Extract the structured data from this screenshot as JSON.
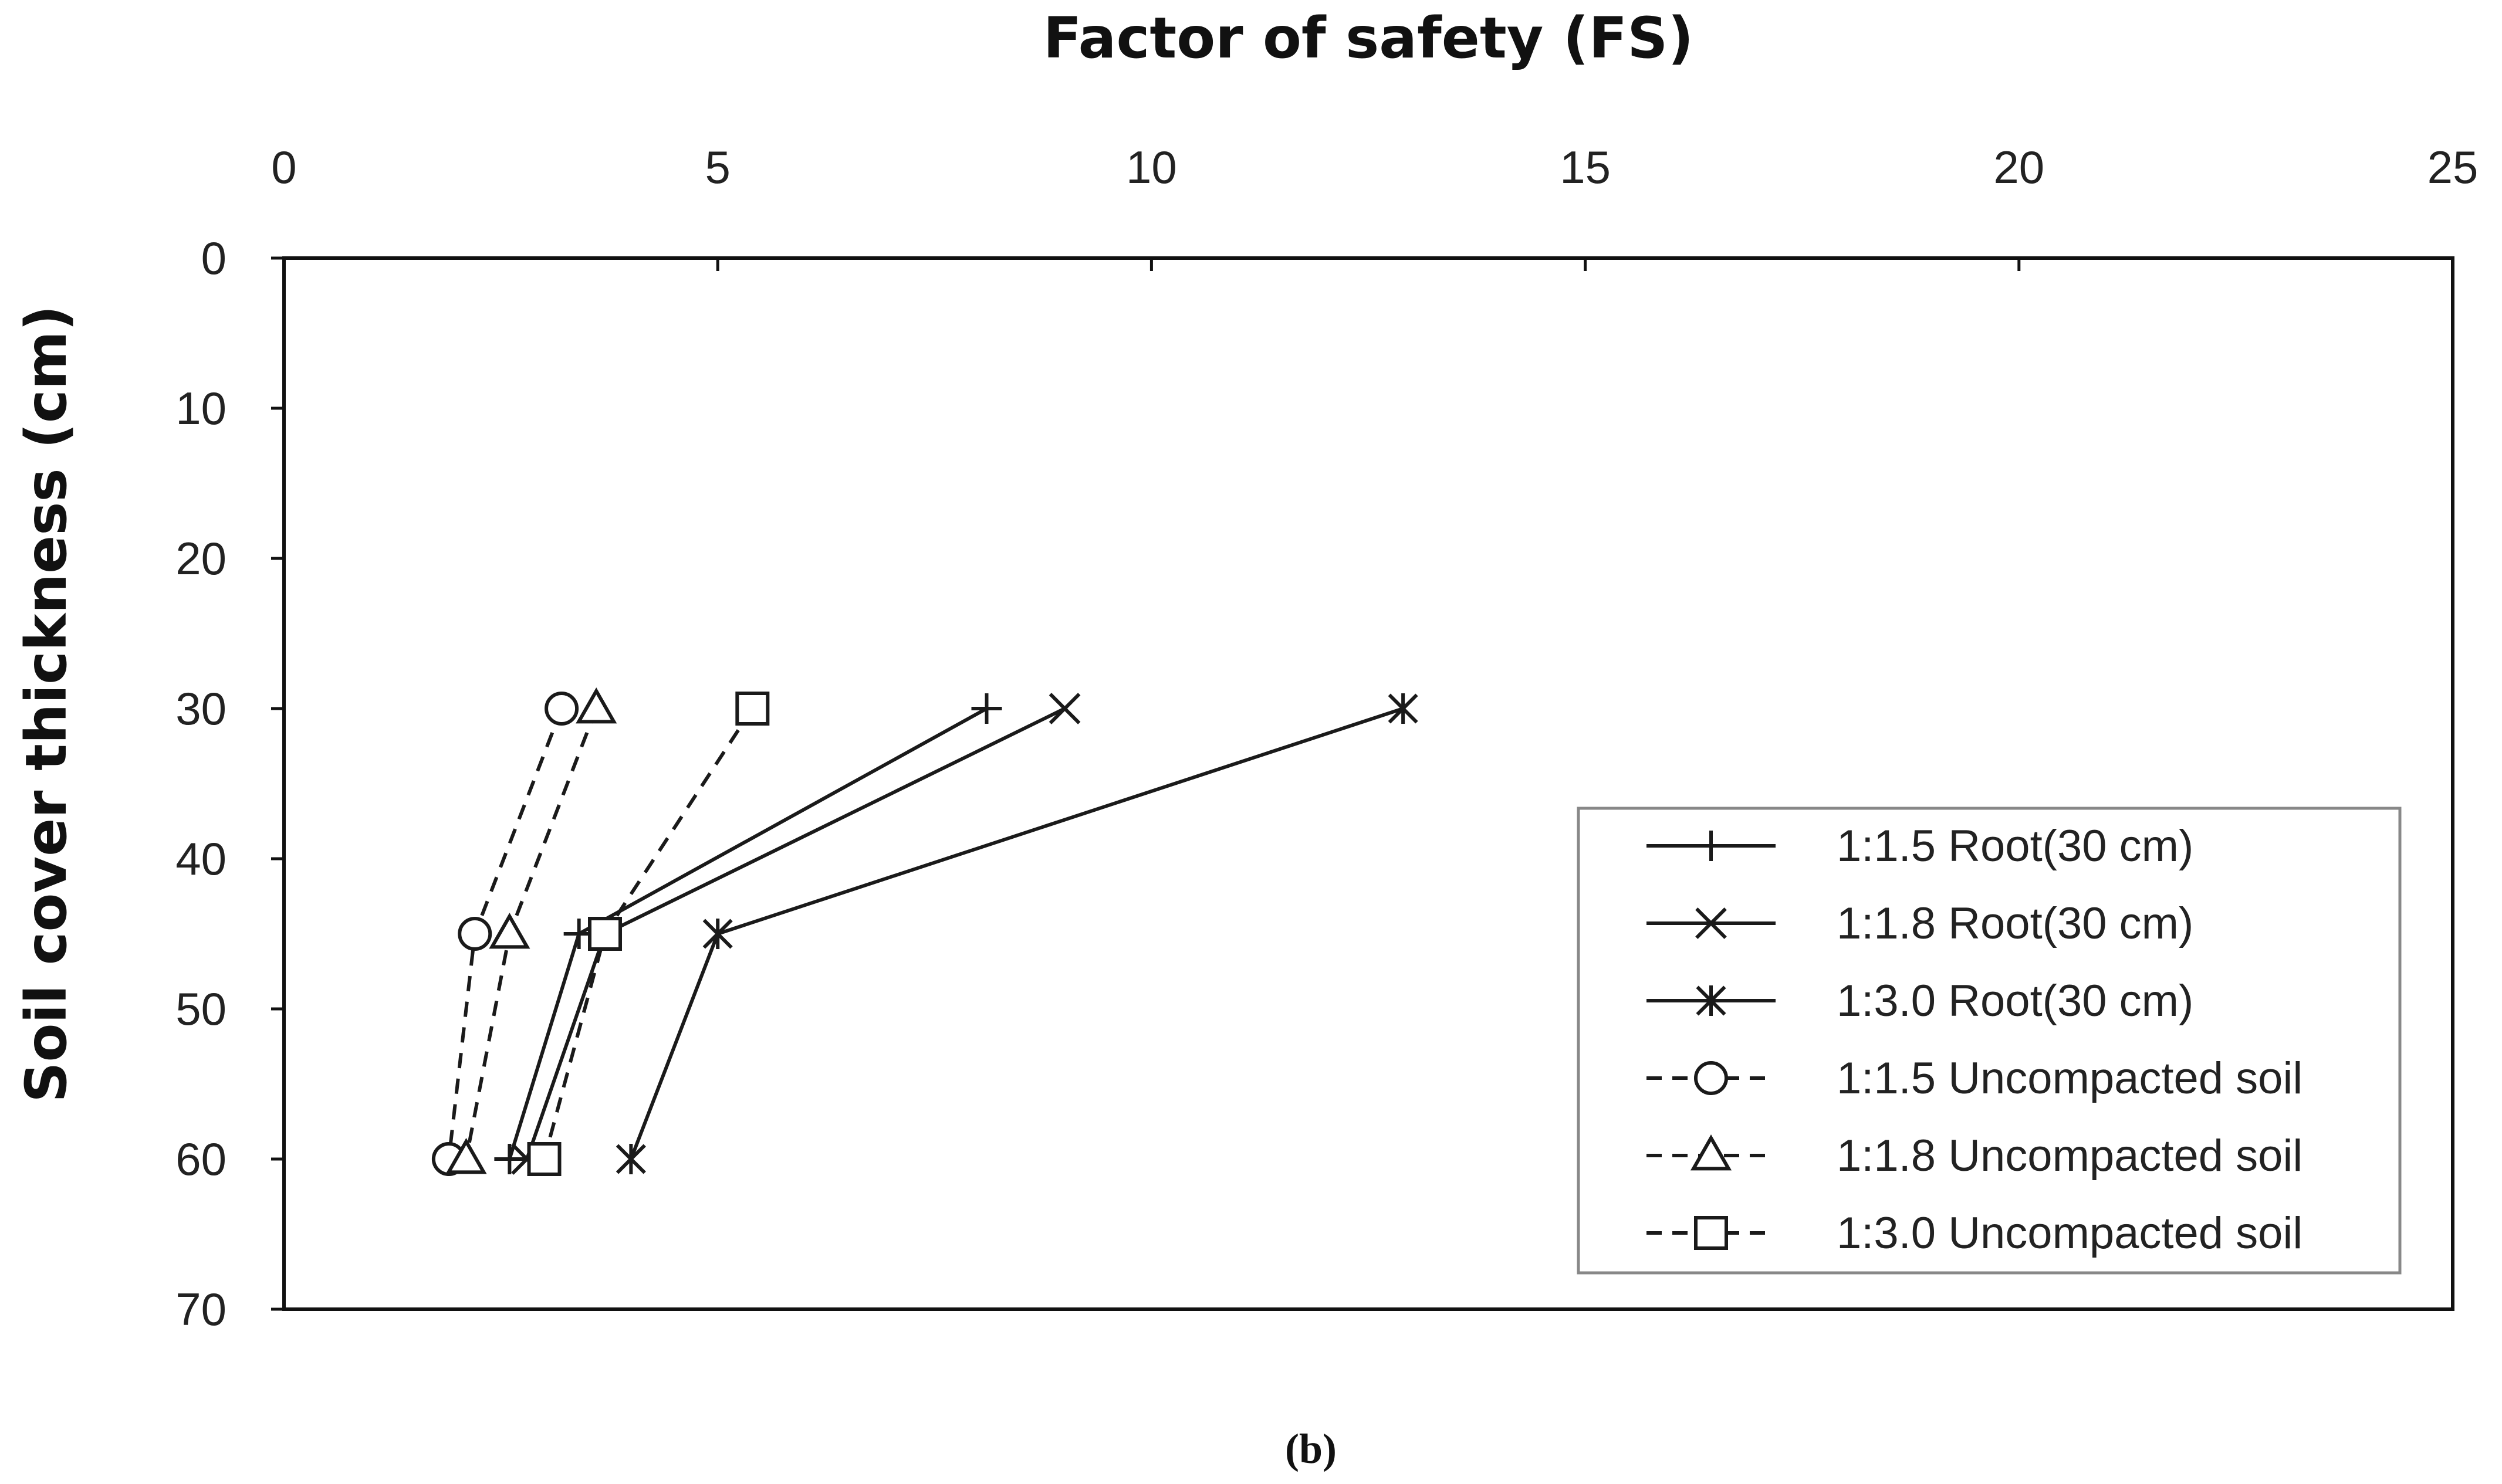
{
  "chart_data": {
    "type": "line",
    "title": "Factor of safety (FS)",
    "xlabel": "Factor of safety (FS)",
    "ylabel": "Soil cover thickness (cm)",
    "xlim": [
      0,
      25
    ],
    "ylim": [
      0,
      70
    ],
    "x_ticks": [
      "0",
      "5",
      "10",
      "15",
      "20",
      "25"
    ],
    "y_ticks": [
      "0",
      "10",
      "20",
      "30",
      "40",
      "50",
      "60",
      "70"
    ],
    "x_axis_position": "top",
    "y_axis_inverted": true,
    "grid": false,
    "legend_position": "right",
    "caption": "(b)",
    "series": [
      {
        "name": "1:1.5 Root(30 cm)",
        "marker": "plus",
        "line": "solid",
        "points": [
          [
            8.1,
            30
          ],
          [
            3.4,
            45
          ],
          [
            2.6,
            60
          ]
        ]
      },
      {
        "name": "1:1.8 Root(30 cm)",
        "marker": "cross",
        "line": "solid",
        "points": [
          [
            9.0,
            30
          ],
          [
            3.7,
            45
          ],
          [
            2.8,
            60
          ]
        ]
      },
      {
        "name": "1:3.0 Root(30 cm)",
        "marker": "star",
        "line": "solid",
        "points": [
          [
            12.9,
            30
          ],
          [
            5.0,
            45
          ],
          [
            4.0,
            60
          ]
        ]
      },
      {
        "name": "1:1.5 Uncompacted soil",
        "marker": "circle",
        "line": "dashed",
        "points": [
          [
            3.2,
            30
          ],
          [
            2.2,
            45
          ],
          [
            1.9,
            60
          ]
        ]
      },
      {
        "name": "1:1.8 Uncompacted soil",
        "marker": "triangle",
        "line": "dashed",
        "points": [
          [
            3.6,
            30
          ],
          [
            2.6,
            45
          ],
          [
            2.1,
            60
          ]
        ]
      },
      {
        "name": "1:3.0 Uncompacted soil",
        "marker": "square",
        "line": "dashed",
        "points": [
          [
            5.4,
            30
          ],
          [
            3.7,
            45
          ],
          [
            3.0,
            60
          ]
        ]
      }
    ],
    "line_color": "#1a1a1a"
  }
}
